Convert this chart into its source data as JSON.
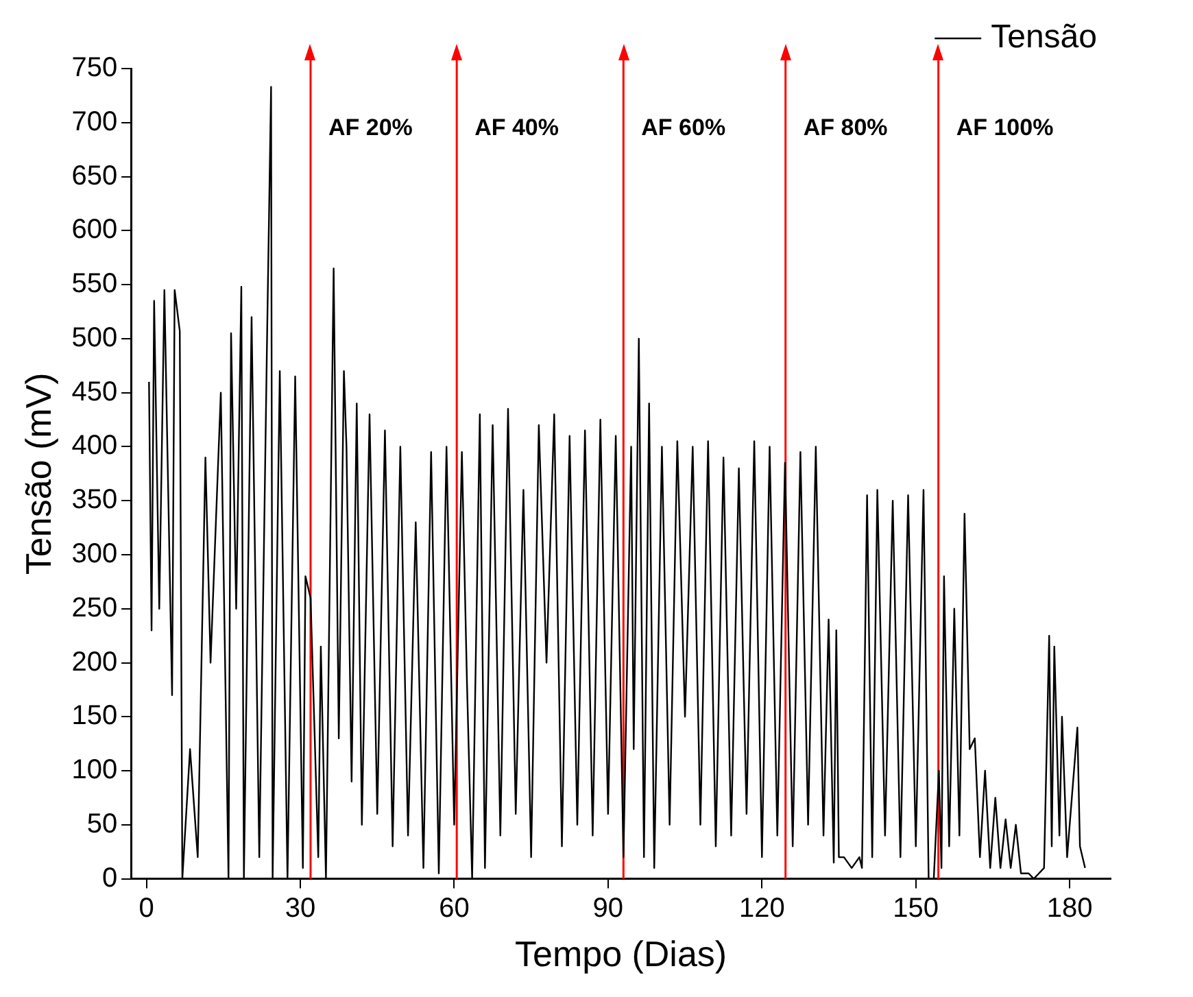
{
  "chart_data": {
    "type": "line",
    "xlabel": "Tempo (Dias)",
    "ylabel": "Tensão (mV)",
    "xlim": [
      -3,
      188
    ],
    "xticks": [
      0,
      30,
      60,
      90,
      120,
      150,
      180
    ],
    "ylim": [
      0,
      750
    ],
    "yticks": [
      0,
      50,
      100,
      150,
      200,
      250,
      300,
      350,
      400,
      450,
      500,
      550,
      600,
      650,
      700,
      750
    ],
    "grid": false,
    "legend": "top right",
    "marker": "none",
    "line_style": "solid",
    "ref_lines": [
      {
        "axis": "x",
        "value": 32,
        "label": "AF 20%",
        "color": "#ff0000"
      },
      {
        "axis": "x",
        "value": 60.5,
        "label": "AF 40%",
        "color": "#ff0000"
      },
      {
        "axis": "x",
        "value": 93,
        "label": "AF 60%",
        "color": "#ff0000"
      },
      {
        "axis": "x",
        "value": 124.6,
        "label": "AF 80%",
        "color": "#ff0000"
      },
      {
        "axis": "x",
        "value": 154.4,
        "label": "AF 100%",
        "color": "#ff0000"
      }
    ],
    "series": [
      {
        "name": "Tensão",
        "color": "#000000",
        "x": [
          0.5,
          1,
          1.5,
          2.5,
          3.5,
          5,
          5.5,
          6.5,
          7,
          8.5,
          10,
          11.5,
          12.5,
          14.5,
          16,
          16.5,
          17.5,
          18.5,
          19,
          20.5,
          22,
          23.5,
          24.3,
          24.6,
          26,
          27.5,
          29,
          30.5,
          31,
          32,
          33.5,
          34,
          35,
          36.5,
          37.5,
          38.5,
          39,
          40,
          41,
          42,
          43.5,
          45,
          46.5,
          48,
          49.5,
          51,
          52.5,
          54,
          55.5,
          57,
          58.5,
          60,
          61.5,
          62.5,
          63.5,
          65,
          66,
          67.5,
          69,
          70.5,
          72,
          73.5,
          75,
          76.5,
          78,
          79.5,
          81,
          82.5,
          84,
          85.5,
          87,
          88.5,
          90,
          91.5,
          93,
          94.5,
          95,
          96,
          97,
          98,
          99,
          100.5,
          102,
          103.5,
          105,
          106.5,
          108,
          109.5,
          111,
          112.5,
          114,
          115.5,
          117,
          118.5,
          120,
          121.5,
          123,
          124.5,
          126,
          127.5,
          129,
          130.5,
          132,
          133,
          134,
          134.5,
          135,
          136,
          137.5,
          139,
          139.5,
          140.5,
          141.5,
          142.5,
          144,
          145.5,
          147,
          148.5,
          150,
          151.5,
          152.5,
          153.5,
          154.5,
          155,
          155.5,
          156.5,
          157.5,
          158.5,
          159.5,
          160.5,
          161.5,
          162.5,
          163.5,
          164.5,
          165.5,
          166.5,
          167.5,
          168.5,
          169.5,
          170.5,
          172,
          173,
          174,
          175,
          176,
          176.5,
          177,
          178,
          178.5,
          179.5,
          181.5,
          182,
          183
        ],
        "values": [
          460,
          230,
          535,
          250,
          545,
          170,
          545,
          507,
          0,
          120,
          20,
          390,
          200,
          450,
          0,
          505,
          250,
          548,
          0,
          520,
          20,
          495,
          733,
          0,
          470,
          0,
          465,
          10,
          280,
          260,
          20,
          215,
          0,
          565,
          130,
          470,
          400,
          90,
          440,
          50,
          430,
          60,
          415,
          30,
          400,
          40,
          330,
          10,
          395,
          5,
          400,
          50,
          395,
          180,
          0,
          430,
          10,
          420,
          40,
          435,
          60,
          360,
          20,
          420,
          200,
          430,
          30,
          410,
          50,
          415,
          40,
          425,
          60,
          410,
          20,
          400,
          120,
          500,
          20,
          440,
          10,
          400,
          50,
          405,
          150,
          400,
          50,
          405,
          30,
          390,
          40,
          380,
          60,
          405,
          20,
          400,
          40,
          385,
          30,
          395,
          50,
          400,
          40,
          240,
          15,
          230,
          20,
          20,
          10,
          20,
          10,
          355,
          20,
          360,
          40,
          350,
          20,
          355,
          30,
          360,
          0,
          0,
          100,
          10,
          280,
          30,
          250,
          40,
          338,
          120,
          130,
          20,
          100,
          10,
          75,
          10,
          55,
          10,
          50,
          5,
          5,
          0,
          5,
          10,
          225,
          30,
          215,
          40,
          150,
          20,
          140,
          30,
          10
        ]
      }
    ]
  }
}
